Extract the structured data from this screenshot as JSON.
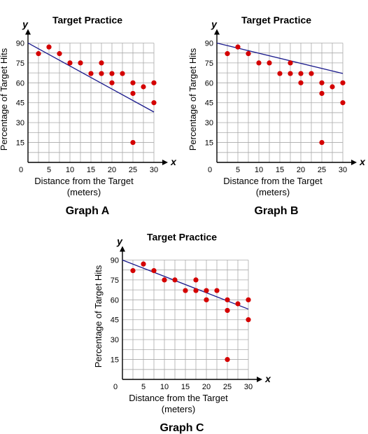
{
  "chart_data": [
    {
      "type": "scatter",
      "title": "Target Practice",
      "caption": "Graph A",
      "xlabel": "Distance from the Target",
      "xlabel_unit": "(meters)",
      "ylabel": "Percentage of Target Hits",
      "x_axis_var": "x",
      "y_axis_var": "y",
      "xlim": [
        0,
        30
      ],
      "ylim": [
        0,
        95
      ],
      "xticks": [
        0,
        5,
        10,
        15,
        20,
        25,
        30
      ],
      "yticks": [
        15,
        30,
        45,
        60,
        75,
        90
      ],
      "grid": true,
      "points": [
        [
          2.5,
          82
        ],
        [
          5,
          87
        ],
        [
          7.5,
          82
        ],
        [
          10,
          75
        ],
        [
          12.5,
          75
        ],
        [
          15,
          67
        ],
        [
          17.5,
          75
        ],
        [
          17.5,
          67
        ],
        [
          20,
          67
        ],
        [
          20,
          60
        ],
        [
          22.5,
          67
        ],
        [
          25,
          60
        ],
        [
          25,
          52
        ],
        [
          27.5,
          57
        ],
        [
          30,
          60
        ],
        [
          30,
          45
        ],
        [
          25,
          15
        ]
      ],
      "trend_line": [
        [
          0,
          90
        ],
        [
          30,
          38
        ]
      ],
      "line_color": "#1a1a8c",
      "point_color": "#d40000"
    },
    {
      "type": "scatter",
      "title": "Target Practice",
      "caption": "Graph B",
      "xlabel": "Distance from the Target",
      "xlabel_unit": "(meters)",
      "ylabel": "Percentage of Target Hits",
      "x_axis_var": "x",
      "y_axis_var": "y",
      "xlim": [
        0,
        30
      ],
      "ylim": [
        0,
        95
      ],
      "xticks": [
        0,
        5,
        10,
        15,
        20,
        25,
        30
      ],
      "yticks": [
        15,
        30,
        45,
        60,
        75,
        90
      ],
      "grid": true,
      "points": [
        [
          2.5,
          82
        ],
        [
          5,
          87
        ],
        [
          7.5,
          82
        ],
        [
          10,
          75
        ],
        [
          12.5,
          75
        ],
        [
          15,
          67
        ],
        [
          17.5,
          75
        ],
        [
          17.5,
          67
        ],
        [
          20,
          67
        ],
        [
          20,
          60
        ],
        [
          22.5,
          67
        ],
        [
          25,
          60
        ],
        [
          25,
          52
        ],
        [
          27.5,
          57
        ],
        [
          30,
          60
        ],
        [
          30,
          45
        ],
        [
          25,
          15
        ]
      ],
      "trend_line": [
        [
          0,
          90
        ],
        [
          30,
          67
        ]
      ],
      "line_color": "#1a1a8c",
      "point_color": "#d40000"
    },
    {
      "type": "scatter",
      "title": "Target Practice",
      "caption": "Graph C",
      "xlabel": "Distance from the Target",
      "xlabel_unit": "(meters)",
      "ylabel": "Percentage of Target Hits",
      "x_axis_var": "x",
      "y_axis_var": "y",
      "xlim": [
        0,
        30
      ],
      "ylim": [
        0,
        95
      ],
      "xticks": [
        0,
        5,
        10,
        15,
        20,
        25,
        30
      ],
      "yticks": [
        15,
        30,
        45,
        60,
        75,
        90
      ],
      "grid": true,
      "points": [
        [
          2.5,
          82
        ],
        [
          5,
          87
        ],
        [
          7.5,
          82
        ],
        [
          10,
          75
        ],
        [
          12.5,
          75
        ],
        [
          15,
          67
        ],
        [
          17.5,
          75
        ],
        [
          17.5,
          67
        ],
        [
          20,
          67
        ],
        [
          20,
          60
        ],
        [
          22.5,
          67
        ],
        [
          25,
          60
        ],
        [
          25,
          52
        ],
        [
          27.5,
          57
        ],
        [
          30,
          60
        ],
        [
          30,
          45
        ],
        [
          25,
          15
        ]
      ],
      "trend_line": [
        [
          0,
          90
        ],
        [
          30,
          53
        ]
      ],
      "line_color": "#1a1a8c",
      "point_color": "#d40000"
    }
  ]
}
